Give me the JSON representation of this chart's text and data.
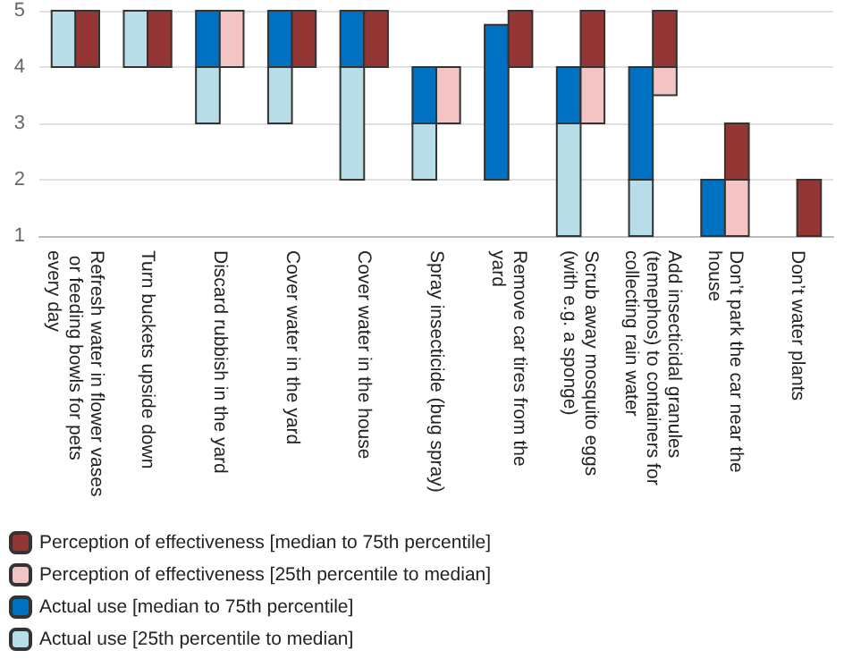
{
  "chart_data": {
    "type": "bar",
    "categories": [
      "Refresh water in flower vases or feeding bowls for pets every day",
      "Turn buckets upside down",
      "Discard rubbish in the yard",
      "Cover water in the yard",
      "Cover water in the house",
      "Spray insecticide (bug spray)",
      "Remove car tires from the yard",
      "Scrub away mosquito eggs (with e.g. a sponge)",
      "Add insecticidal granules (temephos) to containers for collecting rain water",
      "Don’t park the car near the house",
      "Don’t water plants"
    ],
    "series": [
      {
        "name": "Actual use [25th percentile to median]",
        "color": "#b7dde8",
        "base": [
          4,
          4,
          3,
          3,
          2,
          2,
          null,
          1,
          1,
          null,
          null
        ],
        "values": [
          1,
          1,
          1,
          1,
          2,
          1,
          null,
          2,
          1,
          null,
          null
        ]
      },
      {
        "name": "Actual use [median to 75th percentile]",
        "color": "#0070c0",
        "base": [
          null,
          null,
          4,
          4,
          4,
          3,
          2,
          3,
          2,
          1,
          null
        ],
        "values": [
          null,
          null,
          1,
          1,
          1,
          1,
          2.75,
          1,
          2,
          1,
          null
        ]
      },
      {
        "name": "Perception of effectiveness [25th percentile to median]",
        "color": "#f2c4c4",
        "base": [
          null,
          null,
          4,
          null,
          null,
          3,
          null,
          3,
          3.5,
          1,
          null
        ],
        "values": [
          null,
          null,
          1,
          null,
          null,
          1,
          null,
          1,
          0.5,
          1,
          null
        ]
      },
      {
        "name": "Perception of effectiveness [median to 75th percentile]",
        "color": "#943634",
        "base": [
          4,
          4,
          null,
          4,
          4,
          null,
          4,
          4,
          4,
          2,
          1
        ],
        "values": [
          1,
          1,
          null,
          1,
          1,
          null,
          1,
          1,
          1,
          1,
          1
        ]
      }
    ],
    "ylim": [
      1,
      5
    ],
    "yticks": [
      1,
      2,
      3,
      4,
      5
    ],
    "grid": "y",
    "legend": "bottom"
  }
}
